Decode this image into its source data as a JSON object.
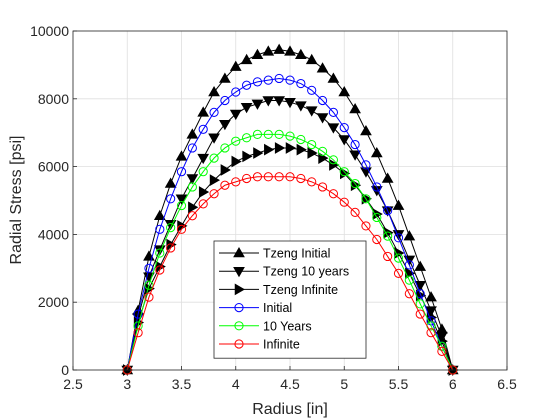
{
  "chart_data": {
    "type": "line",
    "title": "",
    "xlabel": "Radius [in]",
    "ylabel": "Radial Stress [psi]",
    "xlim": [
      2.5,
      6.5
    ],
    "ylim": [
      0,
      10000
    ],
    "xticks": [
      "2.5",
      "3",
      "3.5",
      "4",
      "4.5",
      "5",
      "5.5",
      "6",
      "6.5"
    ],
    "yticks": [
      "0",
      "2000",
      "4000",
      "6000",
      "8000",
      "10000"
    ],
    "grid": true,
    "legend_position": "bottom-center",
    "x": [
      3.0,
      3.1,
      3.2,
      3.3,
      3.4,
      3.5,
      3.6,
      3.7,
      3.8,
      3.9,
      4.0,
      4.1,
      4.2,
      4.3,
      4.4,
      4.5,
      4.6,
      4.7,
      4.8,
      4.9,
      5.0,
      5.1,
      5.2,
      5.3,
      5.4,
      5.5,
      5.6,
      5.7,
      5.8,
      5.9,
      6.0
    ],
    "series": [
      {
        "name": "Tzeng Initial",
        "color": "#000000",
        "marker": "triangle-up",
        "filled": true,
        "values": [
          0,
          1750,
          3350,
          4550,
          5500,
          6300,
          6950,
          7600,
          8200,
          8600,
          8950,
          9150,
          9300,
          9400,
          9450,
          9400,
          9300,
          9150,
          8900,
          8600,
          8200,
          7700,
          7050,
          6400,
          5650,
          4850,
          3950,
          3050,
          2150,
          1200,
          0
        ]
      },
      {
        "name": "Tzeng 10 years",
        "color": "#000000",
        "marker": "triangle-down",
        "filled": true,
        "values": [
          0,
          1550,
          2750,
          3550,
          4300,
          5050,
          5650,
          6250,
          6850,
          7250,
          7550,
          7750,
          7850,
          7950,
          7950,
          7900,
          7800,
          7650,
          7450,
          7150,
          6800,
          6350,
          5850,
          5300,
          4700,
          4000,
          3250,
          2500,
          1750,
          1000,
          0
        ]
      },
      {
        "name": "Tzeng Infinite",
        "color": "#000000",
        "marker": "triangle-right",
        "filled": true,
        "values": [
          0,
          1400,
          2400,
          3050,
          3700,
          4250,
          4800,
          5250,
          5600,
          5900,
          6150,
          6300,
          6400,
          6500,
          6550,
          6550,
          6500,
          6400,
          6250,
          6050,
          5800,
          5450,
          5050,
          4600,
          4050,
          3450,
          2850,
          2200,
          1550,
          850,
          0
        ]
      },
      {
        "name": "Initial",
        "color": "#0000ff",
        "marker": "circle",
        "filled": false,
        "values": [
          0,
          1650,
          3000,
          4150,
          5050,
          5850,
          6550,
          7100,
          7600,
          7950,
          8200,
          8400,
          8500,
          8550,
          8600,
          8550,
          8450,
          8250,
          7950,
          7600,
          7150,
          6650,
          6050,
          5400,
          4700,
          3900,
          3100,
          2250,
          1450,
          700,
          0
        ]
      },
      {
        "name": "10 Years",
        "color": "#00ff00",
        "marker": "circle",
        "filled": false,
        "values": [
          0,
          1300,
          2500,
          3450,
          4200,
          4850,
          5400,
          5850,
          6250,
          6550,
          6750,
          6850,
          6950,
          6950,
          6950,
          6900,
          6800,
          6650,
          6450,
          6200,
          5850,
          5500,
          5050,
          4500,
          3950,
          3300,
          2650,
          1950,
          1300,
          700,
          0
        ]
      },
      {
        "name": "Infinite",
        "color": "#ff0000",
        "marker": "circle",
        "filled": false,
        "values": [
          0,
          1100,
          2150,
          2950,
          3600,
          4150,
          4550,
          4900,
          5200,
          5450,
          5550,
          5650,
          5700,
          5700,
          5700,
          5700,
          5650,
          5550,
          5400,
          5200,
          4950,
          4650,
          4250,
          3850,
          3350,
          2850,
          2250,
          1650,
          1100,
          550,
          0
        ]
      }
    ]
  }
}
